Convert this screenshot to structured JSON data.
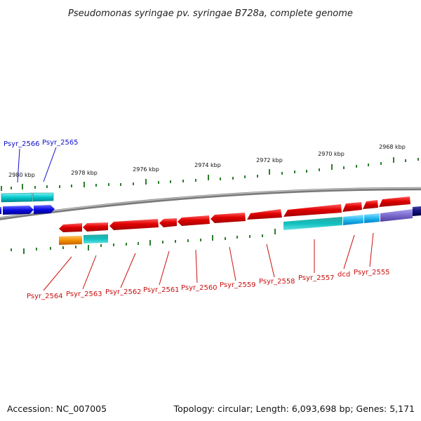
{
  "title": "Pseudomonas syringae pv. syringae B728a, complete genome",
  "footer": {
    "accession": "Accession: NC_007005",
    "topology": "Topology: circular; Length: 6,093,698 bp; Genes: 5,171"
  },
  "ruler": [
    "2980 kbp",
    "2978 kbp",
    "2976 kbp",
    "2974 kbp",
    "2972 kbp",
    "2970 kbp",
    "2968 kbp"
  ],
  "colors": {
    "blue_label": "#1010c8",
    "red_label": "#c81010",
    "backbone": "#8a8a8a",
    "tick": "#2e7d2e",
    "red_gene": "#e00000",
    "cyan_gene": "#00c0c8",
    "blue_gene": "#0a0ae0",
    "navy_gene": "#10107a",
    "orange_gene": "#f39000",
    "lavender_gene": "#7a6acc"
  },
  "labels_top": [
    "Psyr_2566",
    "Psyr_2565"
  ],
  "labels_bottom": [
    "Psyr_2564",
    "Psyr_2563",
    "Psyr_2562",
    "Psyr_2561",
    "Psyr_2560",
    "Psyr_2559",
    "Psyr_2558",
    "Psyr_2557",
    "dcd",
    "Psyr_2555"
  ]
}
